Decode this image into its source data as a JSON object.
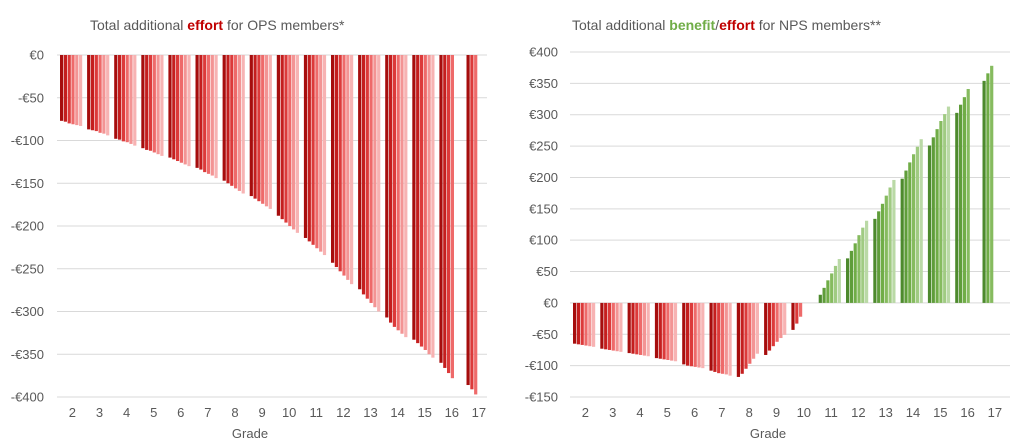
{
  "colors": {
    "red_shades": [
      "#a60d0d",
      "#c41e1e",
      "#dc3a3a",
      "#ee6a6a",
      "#f39494",
      "#f7b3b3"
    ],
    "green_shades": [
      "#4d8a2d",
      "#5f9d3a",
      "#70ad47",
      "#86bb5f",
      "#a0cb82",
      "#bad9a6"
    ],
    "title_red": "#c00000",
    "title_green": "#70ad47"
  },
  "chart_data": [
    {
      "type": "bar",
      "title_parts": [
        {
          "text": "Total additional ",
          "color": "normal",
          "bold": false
        },
        {
          "text": "effort",
          "color": "red",
          "bold": true
        },
        {
          "text": " for OPS members*",
          "color": "normal",
          "bold": false
        }
      ],
      "xlabel": "Grade",
      "ylabel": "",
      "ylim": [
        -400,
        0
      ],
      "y_tick_values": [
        0,
        -50,
        -100,
        -150,
        -200,
        -250,
        -300,
        -350,
        -400
      ],
      "y_tick_labels": [
        "€0",
        "-€50",
        "-€100",
        "-€150",
        "-€200",
        "-€250",
        "-€300",
        "-€350",
        "-€400"
      ],
      "categories": [
        "2",
        "3",
        "4",
        "5",
        "6",
        "7",
        "8",
        "9",
        "10",
        "11",
        "12",
        "13",
        "14",
        "15",
        "16",
        "17"
      ],
      "bars_per_group": [
        6,
        6,
        6,
        6,
        6,
        6,
        6,
        6,
        6,
        6,
        6,
        6,
        6,
        6,
        4,
        3
      ],
      "values": [
        [
          -77,
          -78,
          -80,
          -81,
          -82,
          -83
        ],
        [
          -87,
          -88,
          -89,
          -91,
          -92,
          -94
        ],
        [
          -98,
          -99,
          -101,
          -102,
          -104,
          -106
        ],
        [
          -109,
          -111,
          -112,
          -114,
          -116,
          -118
        ],
        [
          -120,
          -122,
          -124,
          -126,
          -128,
          -130
        ],
        [
          -132,
          -134,
          -137,
          -139,
          -141,
          -144
        ],
        [
          -147,
          -150,
          -153,
          -156,
          -159,
          -162
        ],
        [
          -165,
          -168,
          -171,
          -174,
          -177,
          -180
        ],
        [
          -188,
          -192,
          -196,
          -200,
          -204,
          -208
        ],
        [
          -214,
          -218,
          -222,
          -226,
          -230,
          -234
        ],
        [
          -243,
          -248,
          -253,
          -258,
          -263,
          -268
        ],
        [
          -274,
          -280,
          -285,
          -290,
          -295,
          -300
        ],
        [
          -307,
          -313,
          -318,
          -322,
          -326,
          -330
        ],
        [
          -333,
          -337,
          -341,
          -345,
          -350,
          -354
        ],
        [
          -360,
          -366,
          -372,
          -378
        ],
        [
          -386,
          -391,
          -397
        ]
      ]
    },
    {
      "type": "bar",
      "title_parts": [
        {
          "text": "Total additional ",
          "color": "normal",
          "bold": false
        },
        {
          "text": "benefit",
          "color": "green",
          "bold": true
        },
        {
          "text": "/",
          "color": "normal",
          "bold": false
        },
        {
          "text": "effort",
          "color": "red",
          "bold": true
        },
        {
          "text": " for NPS members**",
          "color": "normal",
          "bold": false
        }
      ],
      "xlabel": "Grade",
      "ylabel": "",
      "ylim": [
        -150,
        400
      ],
      "y_tick_values": [
        400,
        350,
        300,
        250,
        200,
        150,
        100,
        50,
        0,
        -50,
        -100,
        -150
      ],
      "y_tick_labels": [
        "€400",
        "€350",
        "€300",
        "€250",
        "€200",
        "€150",
        "€100",
        "€50",
        "€0",
        "-€50",
        "-€100",
        "-€150"
      ],
      "categories": [
        "2",
        "3",
        "4",
        "5",
        "6",
        "7",
        "8",
        "9",
        "10",
        "11",
        "12",
        "13",
        "14",
        "15",
        "16",
        "17"
      ],
      "bars_per_group": [
        6,
        6,
        6,
        6,
        6,
        6,
        6,
        6,
        3,
        6,
        6,
        6,
        6,
        6,
        4,
        3
      ],
      "values": [
        [
          -65,
          -66,
          -67,
          -68,
          -69,
          -70
        ],
        [
          -73,
          -74,
          -75,
          -76,
          -77,
          -78
        ],
        [
          -80,
          -81,
          -82,
          -83,
          -84,
          -85
        ],
        [
          -88,
          -89,
          -90,
          -91,
          -92,
          -93
        ],
        [
          -98,
          -100,
          -101,
          -102,
          -103,
          -104
        ],
        [
          -108,
          -110,
          -112,
          -113,
          -114,
          -116
        ],
        [
          -118,
          -113,
          -105,
          -97,
          -89,
          -81
        ],
        [
          -83,
          -76,
          -69,
          -62,
          -56,
          -51
        ],
        [
          -43,
          -33,
          -22
        ],
        [
          13,
          24,
          36,
          47,
          59,
          70
        ],
        [
          71,
          83,
          95,
          108,
          120,
          131
        ],
        [
          134,
          146,
          158,
          171,
          184,
          196
        ],
        [
          198,
          211,
          224,
          237,
          249,
          261
        ],
        [
          251,
          264,
          277,
          290,
          301,
          313
        ],
        [
          303,
          316,
          328,
          341
        ],
        [
          354,
          366,
          378
        ]
      ]
    }
  ]
}
